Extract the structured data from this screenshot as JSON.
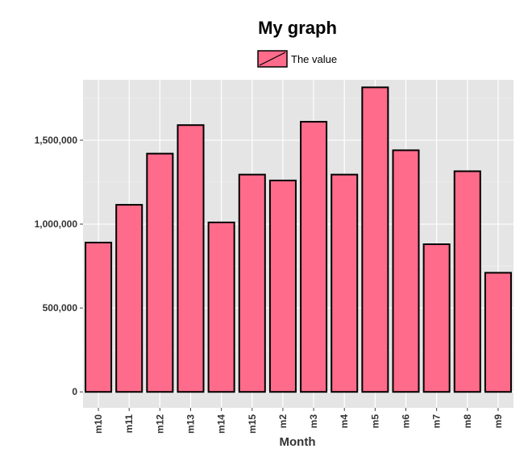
{
  "chart_data": {
    "type": "bar",
    "title": "My graph",
    "xlabel": "Month",
    "ylabel": "",
    "categories": [
      "m10",
      "m11",
      "m12",
      "m13",
      "m14",
      "m15",
      "m2",
      "m3",
      "m4",
      "m5",
      "m6",
      "m7",
      "m8",
      "m9"
    ],
    "series": [
      {
        "name": "The value",
        "values": [
          890000,
          1115000,
          1420000,
          1590000,
          1010000,
          1295000,
          1260000,
          1610000,
          1295000,
          1815000,
          1440000,
          880000,
          1315000,
          710000
        ]
      }
    ],
    "y_ticks": [
      0,
      500000,
      1000000,
      1500000
    ],
    "y_tick_labels": [
      "0",
      "500,000",
      "1,000,000",
      "1,500,000"
    ],
    "ylim": [
      -95000,
      1860000
    ],
    "grid": true,
    "legend_position": "top",
    "colors": {
      "bar_fill": "#FF6B8A",
      "bar_stroke": "#000000",
      "panel_background": "#E5E5E5",
      "grid_major": "#FFFFFF",
      "grid_minor": "#F2F2F2"
    }
  }
}
